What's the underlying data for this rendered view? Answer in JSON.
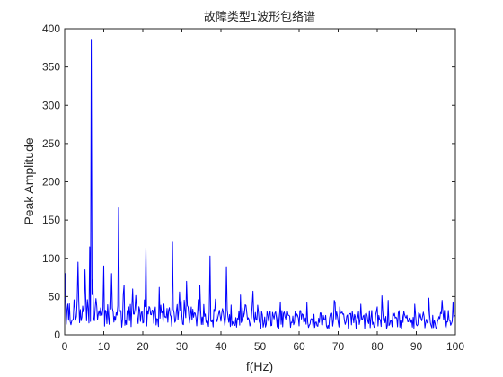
{
  "chart_data": {
    "type": "line",
    "title": "故障类型1波形包络谱",
    "xlabel": "f(Hz)",
    "ylabel": "Peak Amplitude",
    "xlim": [
      0,
      100
    ],
    "ylim": [
      0,
      400
    ],
    "x_ticks": [
      "0",
      "10",
      "20",
      "30",
      "40",
      "50",
      "60",
      "70",
      "80",
      "90",
      "100"
    ],
    "y_ticks": [
      "0",
      "50",
      "100",
      "150",
      "200",
      "250",
      "300",
      "350",
      "400"
    ],
    "grid": false,
    "legend": "none",
    "series": [
      {
        "color": "#0000ff",
        "sample_step_hz": 0.2,
        "noise_floor": {
          "0-10": 30,
          "10-50": 25,
          "50-100": 20
        },
        "peaks": [
          {
            "x": 0.3,
            "y": 80
          },
          {
            "x": 3.5,
            "y": 95
          },
          {
            "x": 5.2,
            "y": 85
          },
          {
            "x": 6.5,
            "y": 115
          },
          {
            "x": 6.9,
            "y": 385
          },
          {
            "x": 7.3,
            "y": 72
          },
          {
            "x": 9.9,
            "y": 90
          },
          {
            "x": 11.9,
            "y": 80
          },
          {
            "x": 13.8,
            "y": 166
          },
          {
            "x": 15.2,
            "y": 65
          },
          {
            "x": 17.3,
            "y": 60
          },
          {
            "x": 20.7,
            "y": 114
          },
          {
            "x": 24.2,
            "y": 62
          },
          {
            "x": 27.6,
            "y": 121
          },
          {
            "x": 31.1,
            "y": 70
          },
          {
            "x": 34.5,
            "y": 65
          },
          {
            "x": 37.2,
            "y": 103
          },
          {
            "x": 41.4,
            "y": 89
          },
          {
            "x": 45.0,
            "y": 52
          },
          {
            "x": 48.3,
            "y": 57
          },
          {
            "x": 55.2,
            "y": 43
          },
          {
            "x": 62.1,
            "y": 42
          },
          {
            "x": 69.0,
            "y": 45
          },
          {
            "x": 75.9,
            "y": 40
          },
          {
            "x": 81.2,
            "y": 51
          },
          {
            "x": 82.8,
            "y": 45
          },
          {
            "x": 89.7,
            "y": 40
          },
          {
            "x": 93.3,
            "y": 48
          },
          {
            "x": 96.6,
            "y": 45
          },
          {
            "x": 99.5,
            "y": 43
          }
        ]
      }
    ]
  }
}
